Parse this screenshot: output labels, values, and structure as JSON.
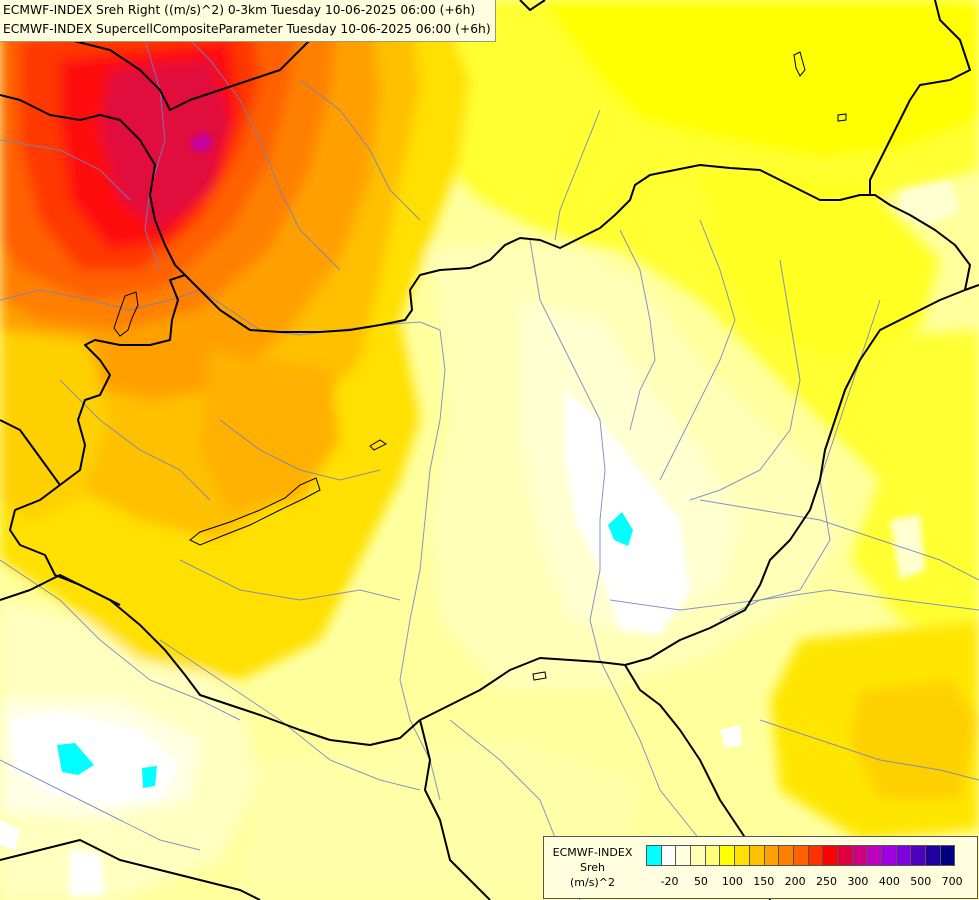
{
  "title": {
    "line1": "ECMWF-INDEX Sreh Right ((m/s)^2) 0-3km Tuesday 10-06-2025 06:00 (+6h)",
    "line2": "ECMWF-INDEX SupercellCompositeParameter Tuesday 10-06-2025 06:00 (+6h)"
  },
  "legend": {
    "line1": "ECMWF-INDEX",
    "line2": "Sreh",
    "line3": "(m/s)^2",
    "colors": [
      "#00ffff",
      "#ffffff",
      "#ffffe0",
      "#ffffb4",
      "#ffff78",
      "#ffff00",
      "#ffe000",
      "#ffc000",
      "#ffa000",
      "#ff8000",
      "#ff6000",
      "#ff3000",
      "#ff0000",
      "#e00040",
      "#d00080",
      "#c000c0",
      "#a000e0",
      "#8000e0",
      "#5000c0",
      "#2000a0",
      "#000080"
    ],
    "ticks": [
      {
        "label": "-20",
        "pos": 1
      },
      {
        "label": "50",
        "pos": 3
      },
      {
        "label": "100",
        "pos": 5
      },
      {
        "label": "150",
        "pos": 7
      },
      {
        "label": "200",
        "pos": 9
      },
      {
        "label": "250",
        "pos": 11
      },
      {
        "label": "300",
        "pos": 13
      },
      {
        "label": "400",
        "pos": 15
      },
      {
        "label": "500",
        "pos": 17
      },
      {
        "label": "700",
        "pos": 19
      }
    ]
  }
}
